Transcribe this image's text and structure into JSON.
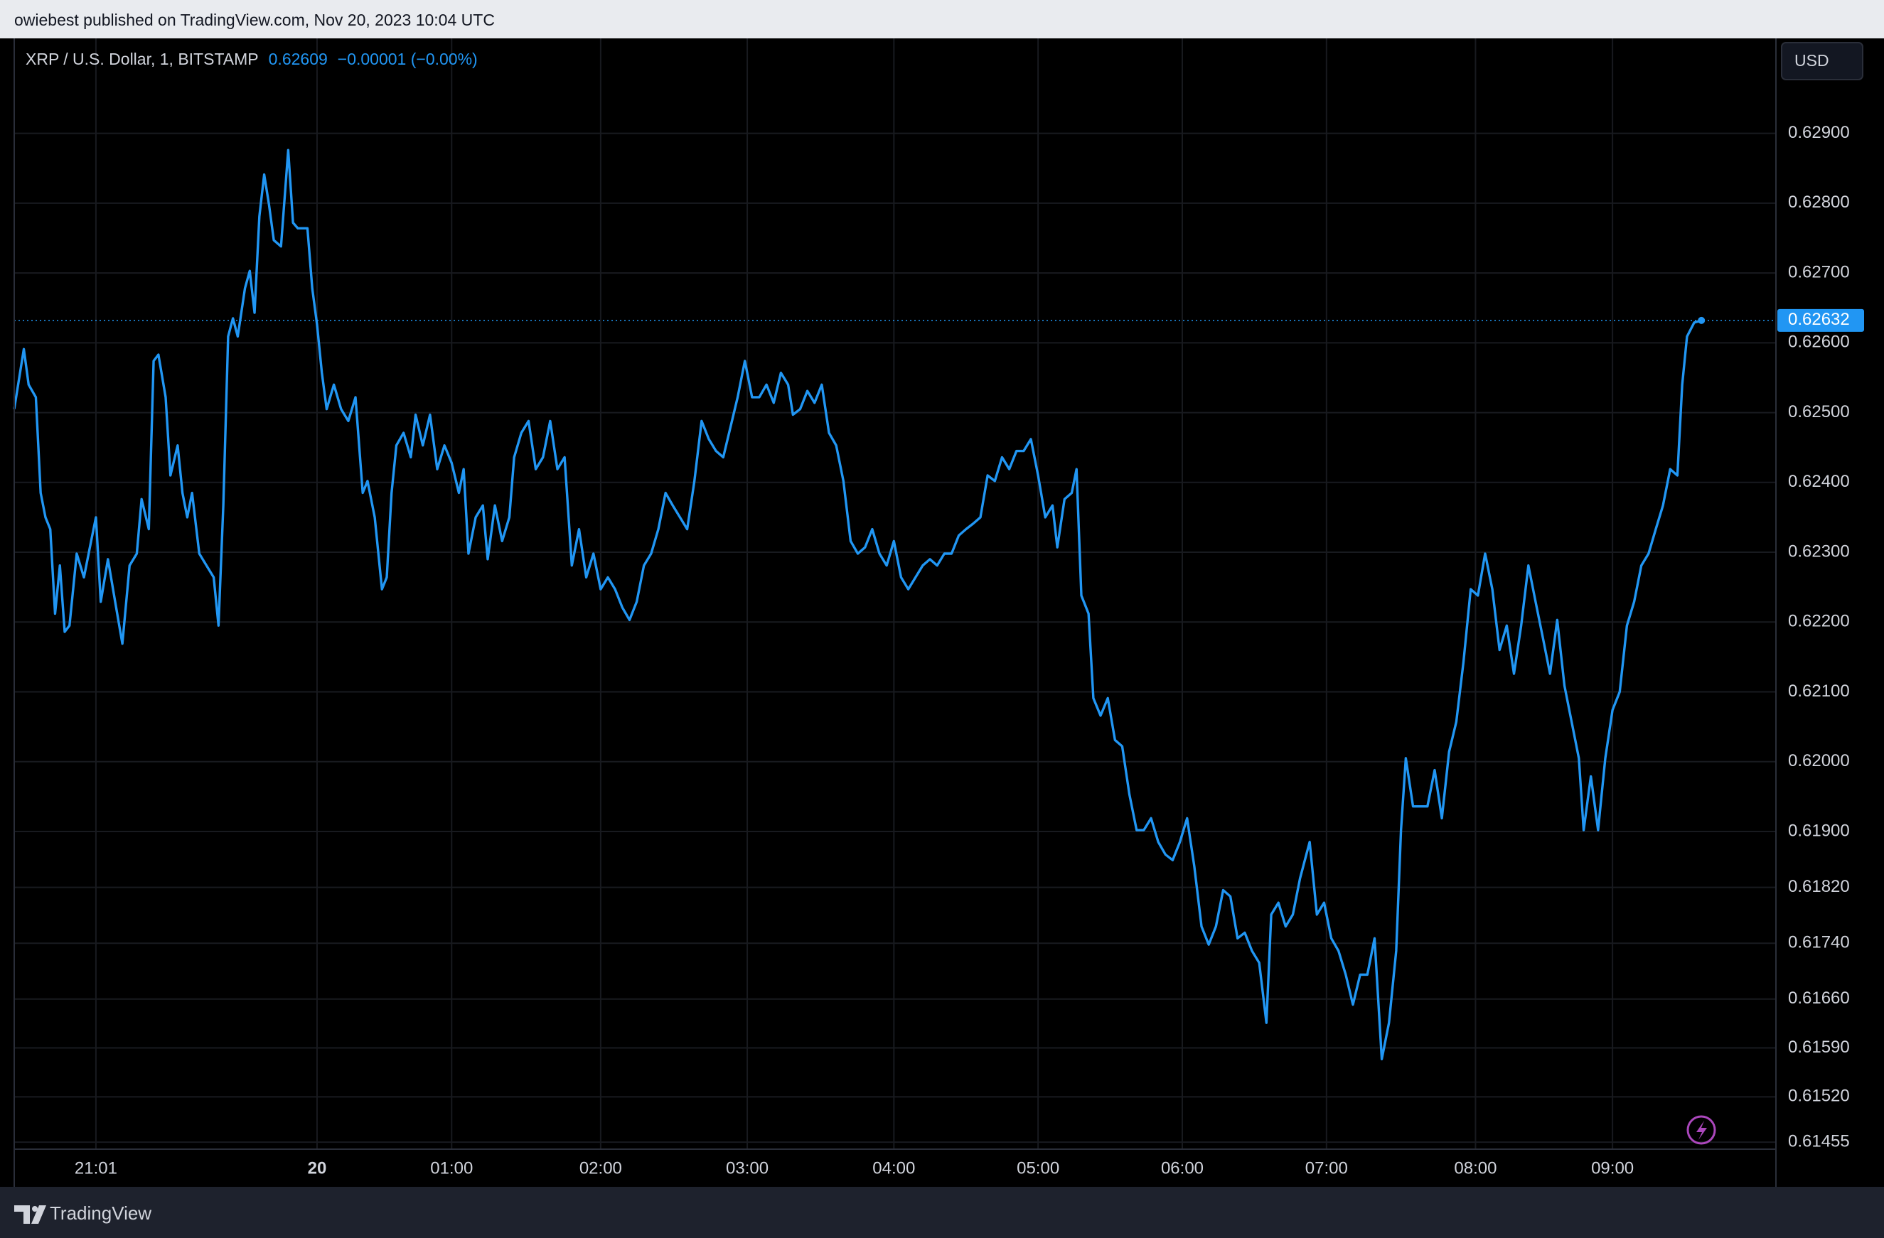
{
  "attribution": "owiebest published on TradingView.com, Nov 20, 2023 10:04 UTC",
  "footer_brand": "TradingView",
  "chart_data": {
    "type": "line",
    "title": "XRP / U.S. Dollar, 1, BITSTAMP",
    "price_change": "−0.00001 (−0.00%)",
    "currency": "USD",
    "color": "#2196f3",
    "grid": true,
    "xlim": [
      0,
      733
    ],
    "xticks": [
      {
        "value": 34,
        "label": "21:01"
      },
      {
        "value": 126,
        "label": "20",
        "bold": true
      },
      {
        "value": 182,
        "label": "01:00"
      },
      {
        "value": 244,
        "label": "02:00"
      },
      {
        "value": 305,
        "label": "03:00"
      },
      {
        "value": 366,
        "label": "04:00"
      },
      {
        "value": 426,
        "label": "05:00"
      },
      {
        "value": 486,
        "label": "06:00"
      },
      {
        "value": 546,
        "label": "07:00"
      },
      {
        "value": 608,
        "label": "08:00"
      },
      {
        "value": 665,
        "label": "09:00"
      }
    ],
    "ylim": [
      0.61445,
      0.63036
    ],
    "yticks": [
      {
        "value": 0.629,
        "label": "0.62900"
      },
      {
        "value": 0.628,
        "label": "0.62800"
      },
      {
        "value": 0.627,
        "label": "0.62700"
      },
      {
        "value": 0.626,
        "label": "0.62600"
      },
      {
        "value": 0.625,
        "label": "0.62500"
      },
      {
        "value": 0.624,
        "label": "0.62400"
      },
      {
        "value": 0.623,
        "label": "0.62300"
      },
      {
        "value": 0.622,
        "label": "0.62200"
      },
      {
        "value": 0.621,
        "label": "0.62100"
      },
      {
        "value": 0.62,
        "label": "0.62000"
      },
      {
        "value": 0.619,
        "label": "0.61900"
      },
      {
        "value": 0.6182,
        "label": "0.61820"
      },
      {
        "value": 0.6174,
        "label": "0.61740"
      },
      {
        "value": 0.6166,
        "label": "0.61660"
      },
      {
        "value": 0.6159,
        "label": "0.61590"
      },
      {
        "value": 0.6152,
        "label": "0.61520"
      },
      0.61455
    ],
    "x": [
      0,
      4,
      6,
      9,
      11,
      13,
      15,
      17,
      19,
      21,
      23,
      26,
      29,
      32,
      34,
      36,
      39,
      42,
      45,
      48,
      51,
      53,
      56,
      58,
      60,
      63,
      65,
      68,
      70,
      72,
      74,
      77,
      80,
      83,
      85,
      87,
      89,
      91,
      93,
      96,
      98,
      100,
      102,
      104,
      106,
      108,
      111,
      114,
      116,
      118,
      122,
      124,
      126,
      128,
      130,
      133,
      136,
      139,
      142,
      145,
      147,
      150,
      153,
      155,
      157,
      159,
      162,
      165,
      167,
      170,
      173,
      176,
      179,
      182,
      185,
      187,
      189,
      192,
      195,
      197,
      200,
      203,
      206,
      208,
      211,
      214,
      217,
      220,
      223,
      226,
      229,
      232,
      235,
      238,
      241,
      244,
      247,
      250,
      253,
      256,
      259,
      262,
      265,
      268,
      271,
      274,
      277,
      280,
      283,
      286,
      289,
      292,
      295,
      298,
      301,
      304,
      307,
      310,
      313,
      316,
      319,
      322,
      324,
      327,
      330,
      333,
      336,
      339,
      342,
      345,
      348,
      351,
      354,
      357,
      360,
      363,
      366,
      369,
      372,
      375,
      378,
      381,
      384,
      387,
      390,
      393,
      396,
      399,
      402,
      405,
      408,
      411,
      414,
      417,
      420,
      423,
      426,
      429,
      432,
      434,
      437,
      440,
      442,
      444,
      447,
      449,
      452,
      455,
      458,
      461,
      464,
      467,
      470,
      473,
      476,
      479,
      482,
      485,
      488,
      491,
      494,
      497,
      500,
      503,
      506,
      509,
      512,
      515,
      518,
      521,
      523,
      526,
      529,
      532,
      535,
      539,
      542,
      545,
      548,
      551,
      554,
      557,
      560,
      563,
      566,
      569,
      572,
      575,
      577,
      579,
      582,
      585,
      588,
      591,
      594,
      597,
      600,
      603,
      606,
      609,
      612,
      615,
      618,
      621,
      624,
      627,
      630,
      633,
      636,
      639,
      642,
      645,
      648,
      651,
      653,
      656,
      659,
      662,
      665,
      668,
      671,
      674,
      677,
      680,
      683,
      686,
      689,
      692,
      694,
      696,
      699,
      702
    ],
    "values": [
      0.62505,
      0.62591,
      0.6254,
      0.62522,
      0.62385,
      0.6235,
      0.62333,
      0.62212,
      0.62281,
      0.62186,
      0.62195,
      0.62298,
      0.62264,
      0.62316,
      0.6235,
      0.62229,
      0.6229,
      0.62229,
      0.62169,
      0.62281,
      0.62298,
      0.62376,
      0.62333,
      0.62574,
      0.62583,
      0.62522,
      0.6241,
      0.62453,
      0.62385,
      0.6235,
      0.62385,
      0.62298,
      0.62281,
      0.62264,
      0.62195,
      0.62367,
      0.62609,
      0.62635,
      0.62609,
      0.62678,
      0.62703,
      0.62643,
      0.62781,
      0.62841,
      0.62798,
      0.62747,
      0.62738,
      0.62876,
      0.62772,
      0.62764,
      0.62764,
      0.62678,
      0.62626,
      0.62557,
      0.62505,
      0.6254,
      0.62505,
      0.62488,
      0.62522,
      0.62385,
      0.62402,
      0.6235,
      0.62247,
      0.62264,
      0.62385,
      0.62453,
      0.62471,
      0.62436,
      0.62497,
      0.62453,
      0.62497,
      0.62419,
      0.62453,
      0.62428,
      0.62385,
      0.62419,
      0.62298,
      0.6235,
      0.62367,
      0.6229,
      0.62367,
      0.62316,
      0.6235,
      0.62436,
      0.62471,
      0.62488,
      0.62419,
      0.62436,
      0.62488,
      0.62419,
      0.62436,
      0.62281,
      0.62333,
      0.62264,
      0.62298,
      0.62247,
      0.62264,
      0.62247,
      0.62221,
      0.62203,
      0.62229,
      0.62281,
      0.62298,
      0.62333,
      0.62385,
      0.62367,
      0.6235,
      0.62333,
      0.62402,
      0.62488,
      0.62462,
      0.62445,
      0.62436,
      0.62479,
      0.62522,
      0.62574,
      0.62522,
      0.62522,
      0.6254,
      0.62514,
      0.62557,
      0.6254,
      0.62497,
      0.62505,
      0.62531,
      0.62514,
      0.6254,
      0.62471,
      0.62453,
      0.62402,
      0.62316,
      0.62298,
      0.62307,
      0.62333,
      0.62298,
      0.62281,
      0.62316,
      0.62264,
      0.62247,
      0.62264,
      0.62281,
      0.6229,
      0.62281,
      0.62298,
      0.62298,
      0.62324,
      0.62333,
      0.62341,
      0.6235,
      0.6241,
      0.62402,
      0.62436,
      0.62419,
      0.62445,
      0.62445,
      0.62462,
      0.6241,
      0.6235,
      0.62367,
      0.62307,
      0.62376,
      0.62385,
      0.62419,
      0.62238,
      0.62212,
      0.62091,
      0.62066,
      0.62091,
      0.62031,
      0.62022,
      0.61953,
      0.61902,
      0.61902,
      0.61919,
      0.61885,
      0.61867,
      0.61859,
      0.61885,
      0.61919,
      0.6185,
      0.61764,
      0.61738,
      0.61764,
      0.61816,
      0.61807,
      0.61747,
      0.61755,
      0.61729,
      0.61712,
      0.61626,
      0.61781,
      0.61798,
      0.61764,
      0.61781,
      0.61833,
      0.61885,
      0.61781,
      0.61798,
      0.61747,
      0.61729,
      0.61695,
      0.61652,
      0.61695,
      0.61695,
      0.61747,
      0.61574,
      0.61626,
      0.61729,
      0.61902,
      0.62005,
      0.61936,
      0.61936,
      0.61936,
      0.61988,
      0.61919,
      0.62014,
      0.62057,
      0.62143,
      0.62247,
      0.62238,
      0.62298,
      0.62247,
      0.6216,
      0.62195,
      0.62126,
      0.62195,
      0.62281,
      0.62229,
      0.62178,
      0.62126,
      0.62203,
      0.62109,
      0.62057,
      0.62005,
      0.61902,
      0.61979,
      0.61902,
      0.62005,
      0.62074,
      0.621,
      0.62195,
      0.62229,
      0.62281,
      0.62298,
      0.62333,
      0.62367,
      0.62419,
      0.6241,
      0.6254,
      0.62609,
      0.62629,
      0.62632
    ]
  }
}
